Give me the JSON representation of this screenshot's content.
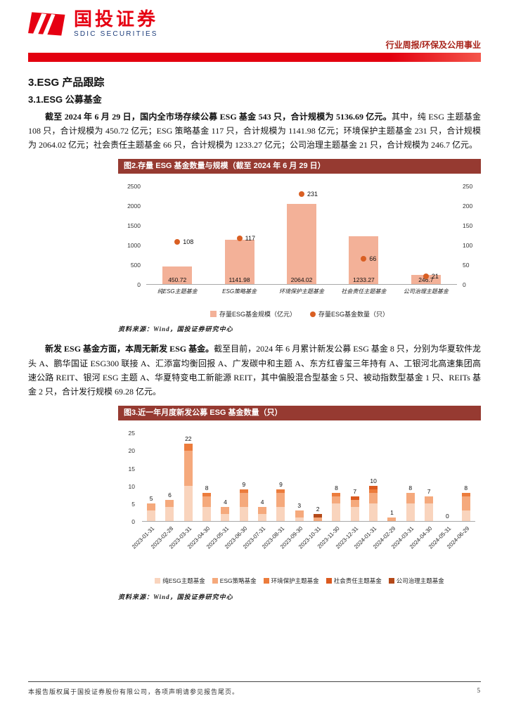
{
  "header": {
    "logo_cn": "国投证券",
    "logo_en": "SDIC SECURITIES",
    "report_type": "行业周报/环保及公用事业"
  },
  "section_title": "3.ESG 产品跟踪",
  "subsection_title": "3.1.ESG 公募基金",
  "paragraph1": {
    "bold": "截至 2024 年 6 月 29 日，国内全市场存续公募 ESG 基金 543 只，合计规模为 5136.69 亿元。",
    "rest": "其中，纯 ESG 主题基金 108 只，合计规模为 450.72 亿元；ESG 策略基金 117 只，合计规模为 1141.98 亿元；环境保护主题基金 231 只，合计规模为 2064.02 亿元；社会责任主题基金 66 只，合计规模为 1233.27 亿元；公司治理主题基金 21 只，合计规模为 246.7 亿元。"
  },
  "paragraph2": {
    "bold": "新发 ESG 基金方面，本周无新发 ESG 基金。",
    "rest": "截至目前，2024 年 6 月累计新发公募 ESG 基金 8 只，分别为华夏软件龙头 A、鹏华国证 ESG300 联接 A、汇添富均衡回报 A、广发碳中和主题 A、东方红睿玺三年持有 A、工银河北高速集团高速公路 REIT、银河 ESG 主题 A、华夏特变电工新能源 REIT，其中偏股混合型基金 5 只、被动指数型基金 1 只、REITs 基金 2 只，合计发行规模 69.28 亿元。"
  },
  "chart_data": [
    {
      "type": "bar",
      "title": "图2.存量 ESG 基金数量与规模（截至 2024 年 6 月 29 日）",
      "categories": [
        "纯ESG主题基金",
        "ESG策略基金",
        "环境保护主题基金",
        "社会责任主题基金",
        "公司治理主题基金"
      ],
      "bar_series": {
        "name": "存量ESG基金规模（亿元）",
        "values": [
          450.72,
          1141.98,
          2064.02,
          1233.27,
          246.7
        ],
        "color": "#f3b198"
      },
      "point_series": {
        "name": "存量ESG基金数量（只）",
        "values": [
          108,
          117,
          231,
          66,
          21
        ],
        "color": "#d95f23"
      },
      "left_axis": {
        "min": 0,
        "max": 2500,
        "ticks": [
          0,
          500,
          1000,
          1500,
          2000,
          2500
        ]
      },
      "right_axis": {
        "min": 0,
        "max": 250,
        "ticks": [
          0,
          50,
          100,
          150,
          200,
          250
        ]
      },
      "grid": false,
      "legend_position": "bottom",
      "source": "资料来源：Wind，国投证券研究中心"
    },
    {
      "type": "stacked-bar",
      "title": "图3.近一年月度新发公募 ESG 基金数量（只）",
      "categories": [
        "2023-01-31",
        "2023-02-28",
        "2023-03-31",
        "2023-04-30",
        "2023-05-31",
        "2023-06-30",
        "2023-07-31",
        "2023-08-31",
        "2023-09-30",
        "2023-10-31",
        "2023-11-30",
        "2023-12-31",
        "2024-01-31",
        "2024-02-29",
        "2024-03-31",
        "2024-04-30",
        "2024-05-31",
        "2024-06-29"
      ],
      "totals": [
        5,
        6,
        22,
        8,
        4,
        9,
        4,
        9,
        3,
        2,
        8,
        7,
        10,
        1,
        8,
        7,
        0,
        8
      ],
      "series": [
        {
          "name": "纯ESG主题基金",
          "color": "#f9d4bd",
          "values": [
            3,
            4,
            10,
            4,
            2,
            4,
            2,
            4,
            1,
            0,
            5,
            4,
            5,
            0,
            5,
            5,
            0,
            3
          ]
        },
        {
          "name": "ESG策略基金",
          "color": "#f5a97c",
          "values": [
            2,
            2,
            10,
            3,
            2,
            4,
            2,
            4,
            2,
            1,
            2,
            2,
            3,
            1,
            3,
            2,
            0,
            4
          ]
        },
        {
          "name": "环境保护主题基金",
          "color": "#ec7c3c",
          "values": [
            0,
            0,
            2,
            1,
            0,
            1,
            0,
            1,
            0,
            0,
            1,
            0,
            1,
            0,
            0,
            0,
            0,
            1
          ]
        },
        {
          "name": "社会责任主题基金",
          "color": "#db5a1f",
          "values": [
            0,
            0,
            0,
            0,
            0,
            0,
            0,
            0,
            0,
            0,
            0,
            1,
            1,
            0,
            0,
            0,
            0,
            0
          ]
        },
        {
          "name": "公司治理主题基金",
          "color": "#b44a1a",
          "values": [
            0,
            0,
            0,
            0,
            0,
            0,
            0,
            0,
            0,
            1,
            0,
            0,
            0,
            0,
            0,
            0,
            0,
            0
          ]
        }
      ],
      "y_axis": {
        "min": 0,
        "max": 25,
        "ticks": [
          0,
          5,
          10,
          15,
          20,
          25
        ]
      },
      "grid": false,
      "legend_position": "bottom",
      "source": "资料来源：Wind，国投证券研究中心"
    }
  ],
  "footer": {
    "copyright": "本报告版权属于国投证券股份有限公司，各项声明请参见报告尾页。",
    "page_number": "5"
  }
}
